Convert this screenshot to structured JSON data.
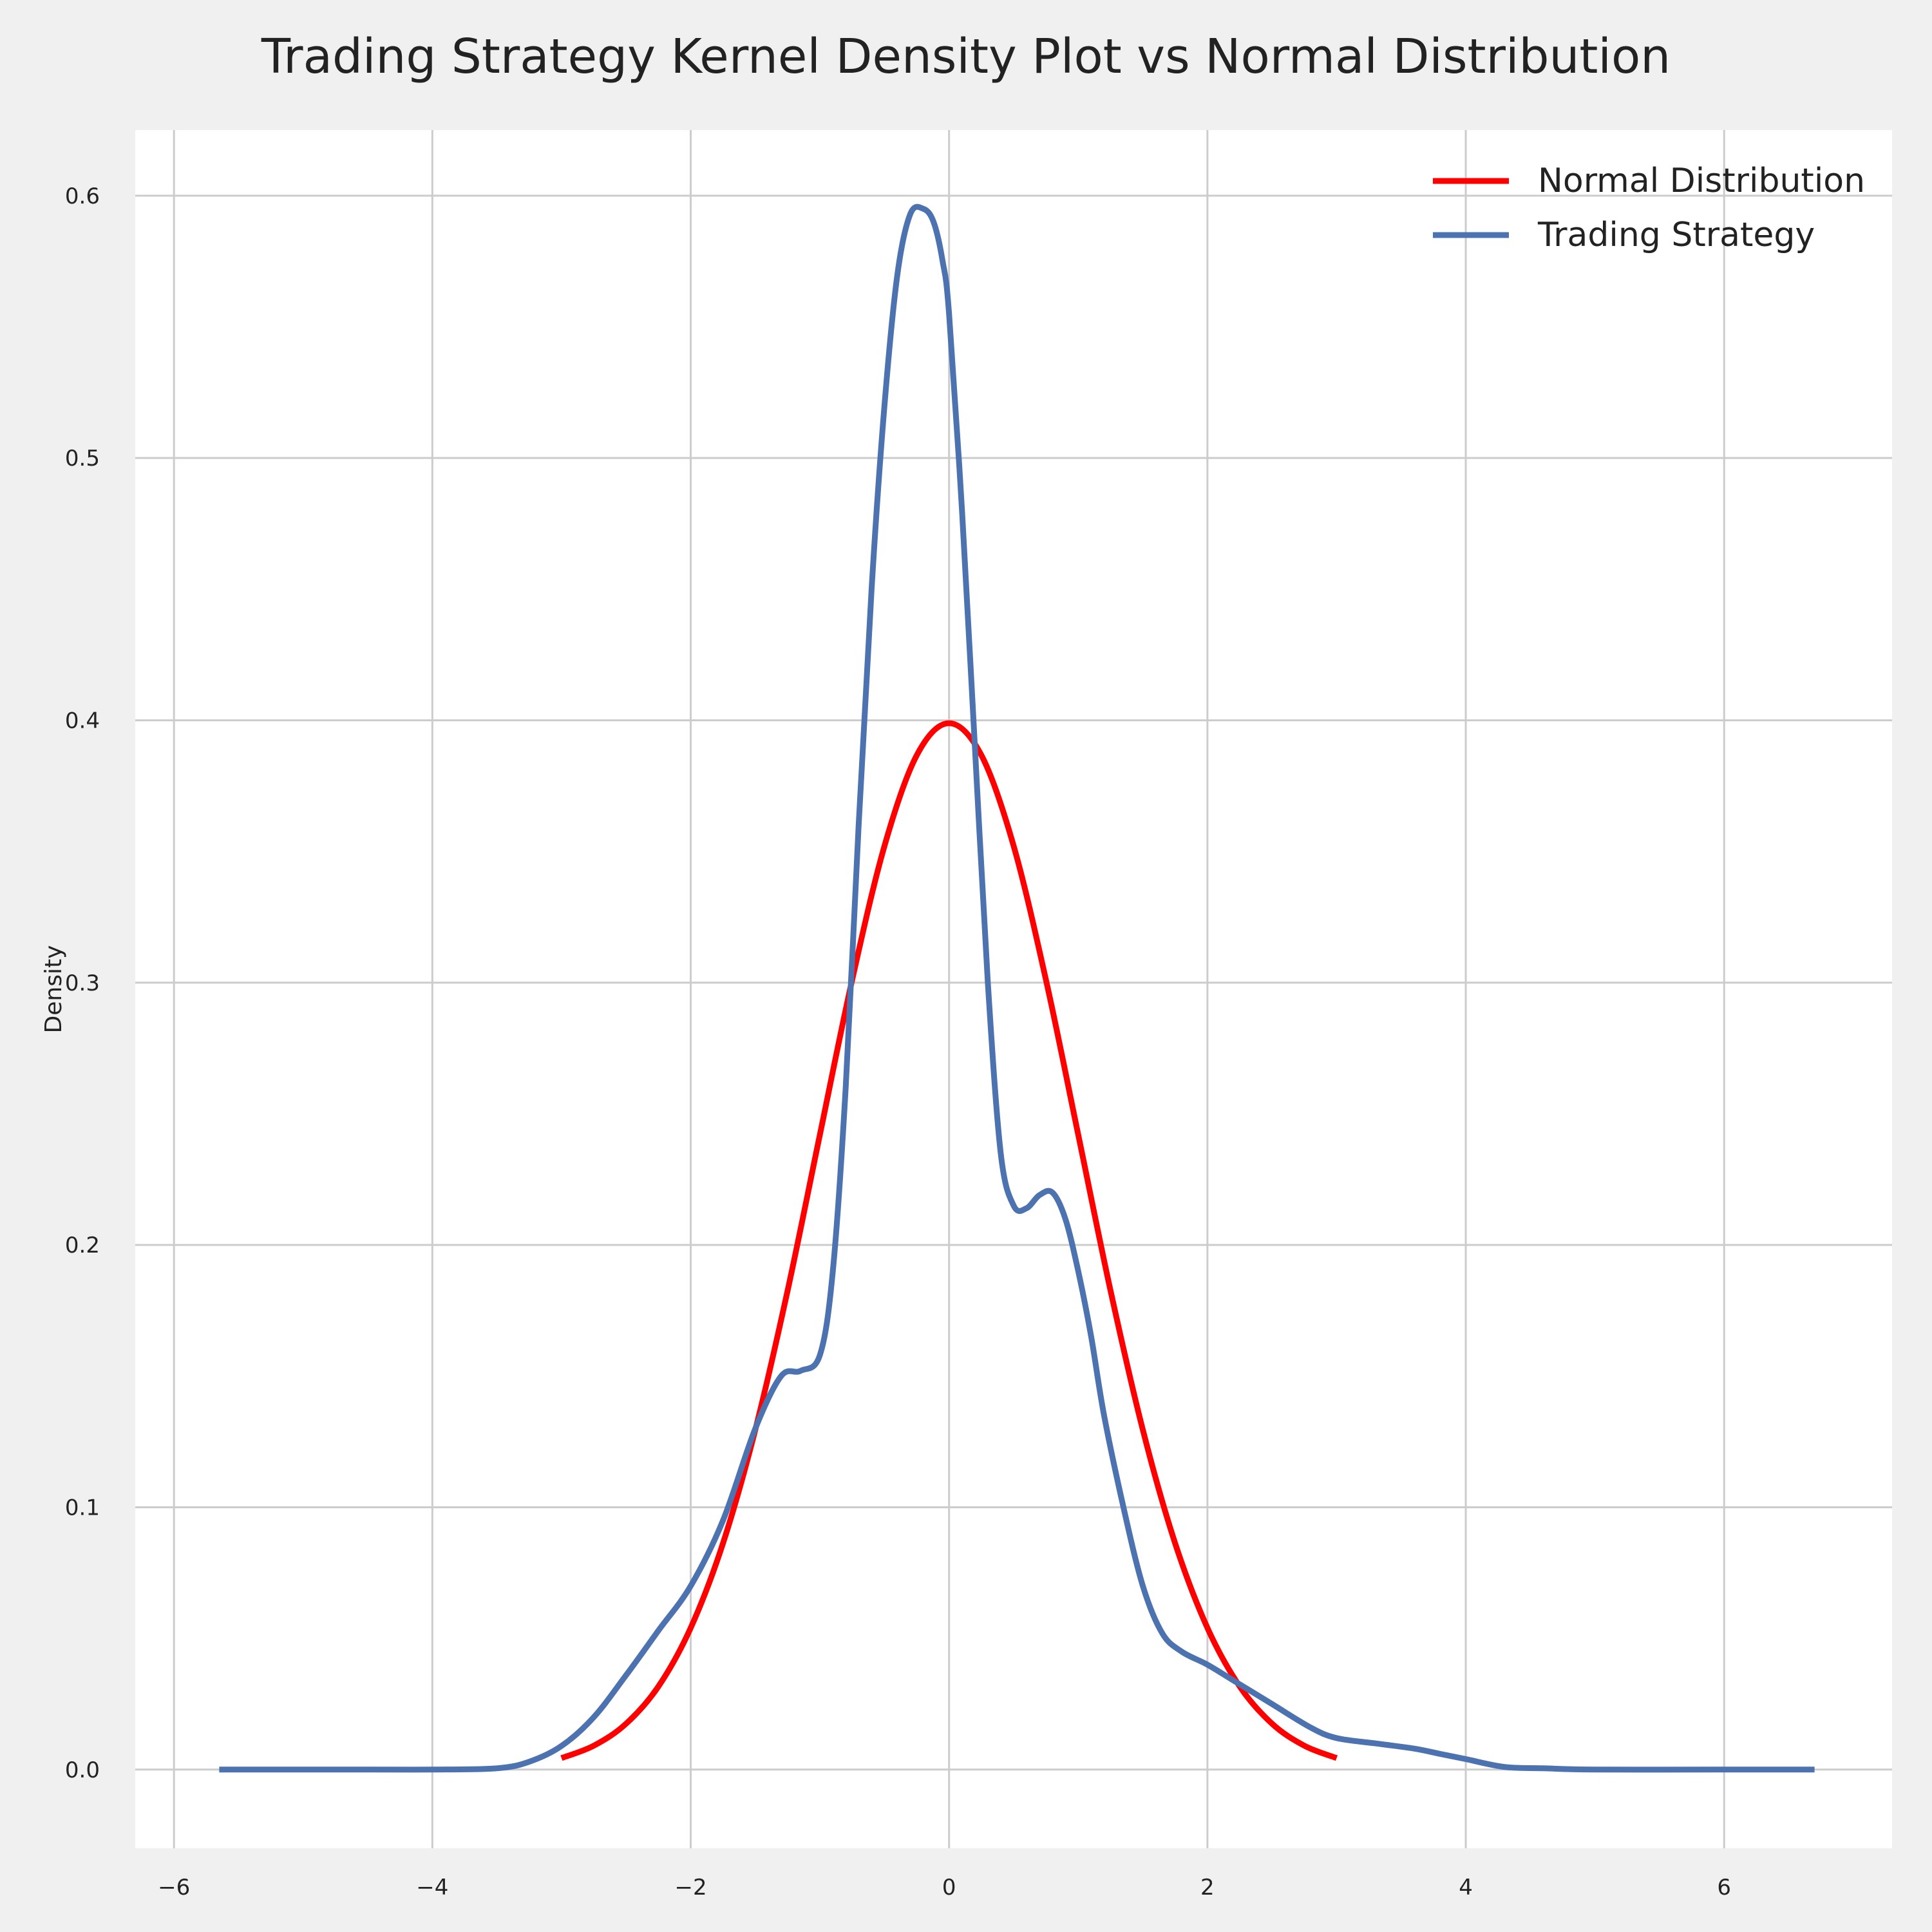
{
  "chart_data": {
    "type": "line",
    "title": "Trading Strategy Kernel Density Plot vs Normal Distribution",
    "xlabel": "",
    "ylabel": "Density",
    "xlim": [
      -6.3,
      7.3
    ],
    "ylim": [
      -0.03,
      0.625
    ],
    "x_ticks": [
      -6,
      -4,
      -2,
      0,
      2,
      4,
      6
    ],
    "x_tick_labels": [
      "−6",
      "−4",
      "−2",
      "0",
      "2",
      "4",
      "6"
    ],
    "y_ticks": [
      0.0,
      0.1,
      0.2,
      0.3,
      0.4,
      0.5,
      0.6
    ],
    "y_tick_labels": [
      "0.0",
      "0.1",
      "0.2",
      "0.3",
      "0.4",
      "0.5",
      "0.6"
    ],
    "grid": true,
    "legend_position": "top-right",
    "series": [
      {
        "name": "Normal Distribution",
        "color": "#ff0000",
        "x": [
          -3.0,
          -2.75,
          -2.5,
          -2.25,
          -2.0,
          -1.75,
          -1.5,
          -1.25,
          -1.0,
          -0.75,
          -0.5,
          -0.25,
          0.0,
          0.25,
          0.5,
          0.75,
          1.0,
          1.25,
          1.5,
          1.75,
          2.0,
          2.25,
          2.5,
          2.75,
          3.0
        ],
        "y": [
          0.0044,
          0.0091,
          0.0175,
          0.0317,
          0.054,
          0.0863,
          0.1295,
          0.1826,
          0.242,
          0.3011,
          0.3521,
          0.3867,
          0.3989,
          0.3867,
          0.3521,
          0.3011,
          0.242,
          0.1826,
          0.1295,
          0.0863,
          0.054,
          0.0317,
          0.0175,
          0.0091,
          0.0044
        ]
      },
      {
        "name": "Trading Strategy",
        "color": "#4c72b0",
        "x": [
          -5.65,
          -4.5,
          -4.0,
          -3.5,
          -3.25,
          -3.0,
          -2.75,
          -2.5,
          -2.25,
          -2.0,
          -1.75,
          -1.5,
          -1.3,
          -1.15,
          -1.0,
          -0.9,
          -0.8,
          -0.7,
          -0.6,
          -0.5,
          -0.4,
          -0.3,
          -0.2,
          -0.12,
          -0.05,
          0.0,
          0.1,
          0.2,
          0.3,
          0.4,
          0.5,
          0.6,
          0.7,
          0.8,
          0.9,
          1.0,
          1.1,
          1.2,
          1.35,
          1.5,
          1.65,
          1.8,
          2.0,
          2.2,
          2.5,
          2.8,
          3.0,
          3.3,
          3.6,
          3.8,
          4.0,
          4.3,
          4.6,
          5.0,
          6.0,
          6.7
        ],
        "y": [
          0.0,
          0.0,
          0.0,
          0.0005,
          0.003,
          0.009,
          0.02,
          0.036,
          0.053,
          0.07,
          0.095,
          0.13,
          0.15,
          0.152,
          0.158,
          0.19,
          0.26,
          0.36,
          0.45,
          0.52,
          0.57,
          0.593,
          0.595,
          0.59,
          0.575,
          0.555,
          0.48,
          0.39,
          0.3,
          0.235,
          0.215,
          0.214,
          0.219,
          0.22,
          0.21,
          0.19,
          0.165,
          0.135,
          0.1,
          0.07,
          0.052,
          0.045,
          0.04,
          0.034,
          0.025,
          0.016,
          0.012,
          0.01,
          0.008,
          0.006,
          0.004,
          0.001,
          0.0005,
          0.0,
          0.0,
          0.0
        ]
      }
    ]
  }
}
